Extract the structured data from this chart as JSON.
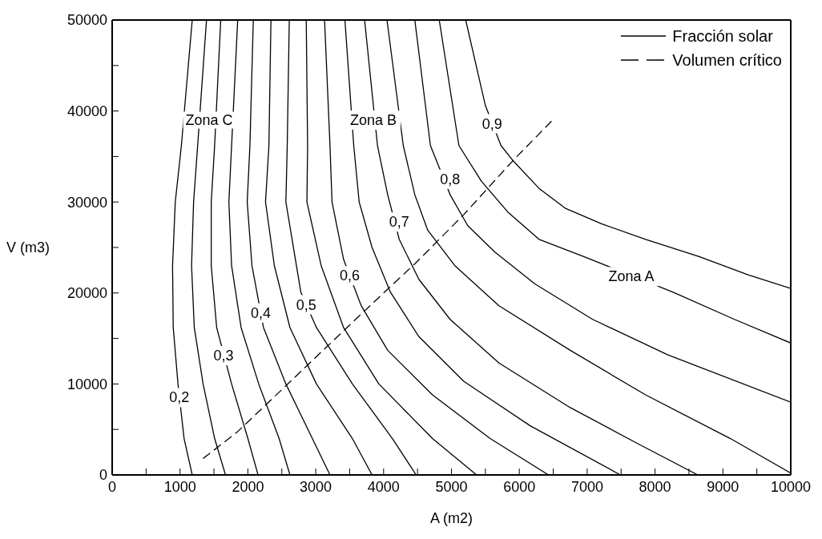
{
  "chart_data": {
    "type": "line",
    "xlabel": "A (m2)",
    "ylabel": "V (m3)",
    "xlim": [
      0,
      10000
    ],
    "ylim": [
      0,
      50000
    ],
    "xticks": [
      0,
      {
        "value": 500,
        "label": null
      },
      1000,
      {
        "value": 1500,
        "label": null
      },
      2000,
      {
        "value": 2500,
        "label": null
      },
      3000,
      {
        "value": 3500,
        "label": null
      },
      4000,
      {
        "value": 4500,
        "label": null
      },
      5000,
      {
        "value": 5500,
        "label": null
      },
      6000,
      {
        "value": 6500,
        "label": null
      },
      7000,
      {
        "value": 7500,
        "label": null
      },
      8000,
      {
        "value": 8500,
        "label": null
      },
      9000,
      {
        "value": 9500,
        "label": null
      },
      10000
    ],
    "yticks": [
      0,
      {
        "value": 5000,
        "label": null
      },
      10000,
      {
        "value": 15000,
        "label": null
      },
      20000,
      {
        "value": 25000,
        "label": null
      },
      30000,
      {
        "value": 35000,
        "label": null
      },
      40000,
      {
        "value": 45000,
        "label": null
      },
      50000
    ],
    "grid": false,
    "legend": "top right",
    "marker": "none",
    "series": [
      {
        "name": "Fracción solar",
        "color": "#000000",
        "line_style": "solid",
        "x": [
          1180,
          1020,
          930,
          890,
          900,
          970,
          1060,
          1180
        ],
        "values": [
          50000,
          36200,
          30000,
          23000,
          16200,
          10000,
          4000,
          0
        ]
      },
      {
        "color": "#000000",
        "line_style": "solid",
        "x": [
          1390,
          1260,
          1200,
          1170,
          1210,
          1340,
          1510,
          1670
        ],
        "values": [
          50000,
          36200,
          30000,
          23000,
          16200,
          10000,
          4000,
          0
        ]
      },
      {
        "color": "#000000",
        "line_style": "solid",
        "x": [
          1600,
          1510,
          1460,
          1460,
          1540,
          1760,
          2000,
          2150
        ],
        "values": [
          50000,
          36200,
          30000,
          23000,
          16200,
          10000,
          4000,
          0
        ]
      },
      {
        "color": "#000000",
        "line_style": "solid",
        "x": [
          1850,
          1760,
          1720,
          1760,
          1900,
          2160,
          2460,
          2620
        ],
        "values": [
          50000,
          36200,
          30000,
          23000,
          16200,
          10000,
          4000,
          0
        ]
      },
      {
        "color": "#000000",
        "line_style": "solid",
        "x": [
          2080,
          2030,
          1990,
          2060,
          2230,
          2560,
          2950,
          3210
        ],
        "values": [
          50000,
          36200,
          30000,
          23000,
          16200,
          10000,
          4000,
          0
        ]
      },
      {
        "color": "#000000",
        "line_style": "solid",
        "x": [
          2340,
          2310,
          2260,
          2390,
          2620,
          3010,
          3540,
          3830
        ],
        "values": [
          50000,
          36200,
          30000,
          23000,
          16200,
          10000,
          4000,
          0
        ]
      },
      {
        "color": "#000000",
        "line_style": "solid",
        "x": [
          2610,
          2580,
          2560,
          2780,
          3010,
          3540,
          4130,
          4480
        ],
        "values": [
          50000,
          36200,
          30000,
          20100,
          16200,
          10000,
          4000,
          0
        ]
      },
      {
        "color": "#000000",
        "line_style": "solid",
        "x": [
          2860,
          2880,
          2870,
          3080,
          3410,
          3930,
          4720,
          5370
        ],
        "values": [
          50000,
          36200,
          30000,
          23000,
          16200,
          10000,
          4000,
          0
        ]
      },
      {
        "color": "#000000",
        "line_style": "solid",
        "x": [
          3130,
          3210,
          3240,
          3410,
          3670,
          4060,
          4720,
          5570,
          6430
        ],
        "values": [
          50000,
          36200,
          30000,
          23700,
          18600,
          13700,
          8800,
          4000,
          0
        ]
      },
      {
        "color": "#000000",
        "line_style": "solid",
        "x": [
          3430,
          3560,
          3640,
          3830,
          4100,
          4520,
          5180,
          6160,
          7490
        ],
        "values": [
          50000,
          36200,
          30000,
          25000,
          20100,
          15200,
          10300,
          5400,
          0
        ]
      },
      {
        "color": "#000000",
        "line_style": "solid",
        "x": [
          3720,
          3910,
          4060,
          4230,
          4520,
          4980,
          5700,
          6750,
          7730,
          8630
        ],
        "values": [
          50000,
          36200,
          30800,
          25900,
          21500,
          17100,
          12300,
          7400,
          3500,
          0
        ]
      },
      {
        "color": "#000000",
        "line_style": "solid",
        "x": [
          4050,
          4290,
          4460,
          4650,
          5050,
          5700,
          6750,
          7860,
          9110,
          10000
        ],
        "values": [
          50000,
          36200,
          30800,
          26900,
          23000,
          18600,
          13700,
          8800,
          4000,
          200
        ]
      },
      {
        "color": "#000000",
        "line_style": "solid",
        "x": [
          4460,
          4690,
          4980,
          5240,
          5640,
          6230,
          7080,
          8190,
          10000
        ],
        "values": [
          50000,
          36200,
          30800,
          27400,
          24500,
          21000,
          17100,
          13200,
          8000
        ]
      },
      {
        "color": "#000000",
        "line_style": "solid",
        "x": [
          4820,
          5110,
          5440,
          5830,
          6290,
          6950,
          8260,
          9170,
          10000
        ],
        "values": [
          50000,
          36200,
          32300,
          28900,
          25900,
          24000,
          20100,
          17100,
          14500
        ]
      },
      {
        "color": "#000000",
        "line_style": "solid",
        "x": [
          5210,
          5500,
          5730,
          5900,
          6290,
          6680,
          7210,
          7860,
          8650,
          9370,
          10000
        ],
        "values": [
          50000,
          40600,
          36200,
          34600,
          31500,
          29300,
          27600,
          25900,
          24000,
          22000,
          20500
        ]
      },
      {
        "name": "Volumen crítico",
        "color": "#000000",
        "line_style": "dashed",
        "x": [
          1340,
          1840,
          2490,
          3150,
          3800,
          4460,
          5180,
          5900,
          6490
        ],
        "values": [
          1800,
          4700,
          9300,
          14000,
          18600,
          23200,
          28600,
          34500,
          39000
        ]
      }
    ],
    "annotations": [
      {
        "text": "0,2",
        "x": 990,
        "y": 8500
      },
      {
        "text": "0,3",
        "x": 1640,
        "y": 13100
      },
      {
        "text": "0,4",
        "x": 2190,
        "y": 17800
      },
      {
        "text": "0,5",
        "x": 2860,
        "y": 18700
      },
      {
        "text": "0,6",
        "x": 3500,
        "y": 21900
      },
      {
        "text": "0,7",
        "x": 4230,
        "y": 27800
      },
      {
        "text": "0,8",
        "x": 4980,
        "y": 32500
      },
      {
        "text": "0,9",
        "x": 5600,
        "y": 38600
      },
      "Zona C",
      {
        "text": "Zona B",
        "x": 3850,
        "y": 39000
      },
      {
        "text": "Zona A",
        "x": 7650,
        "y": 21800
      }
    ]
  }
}
